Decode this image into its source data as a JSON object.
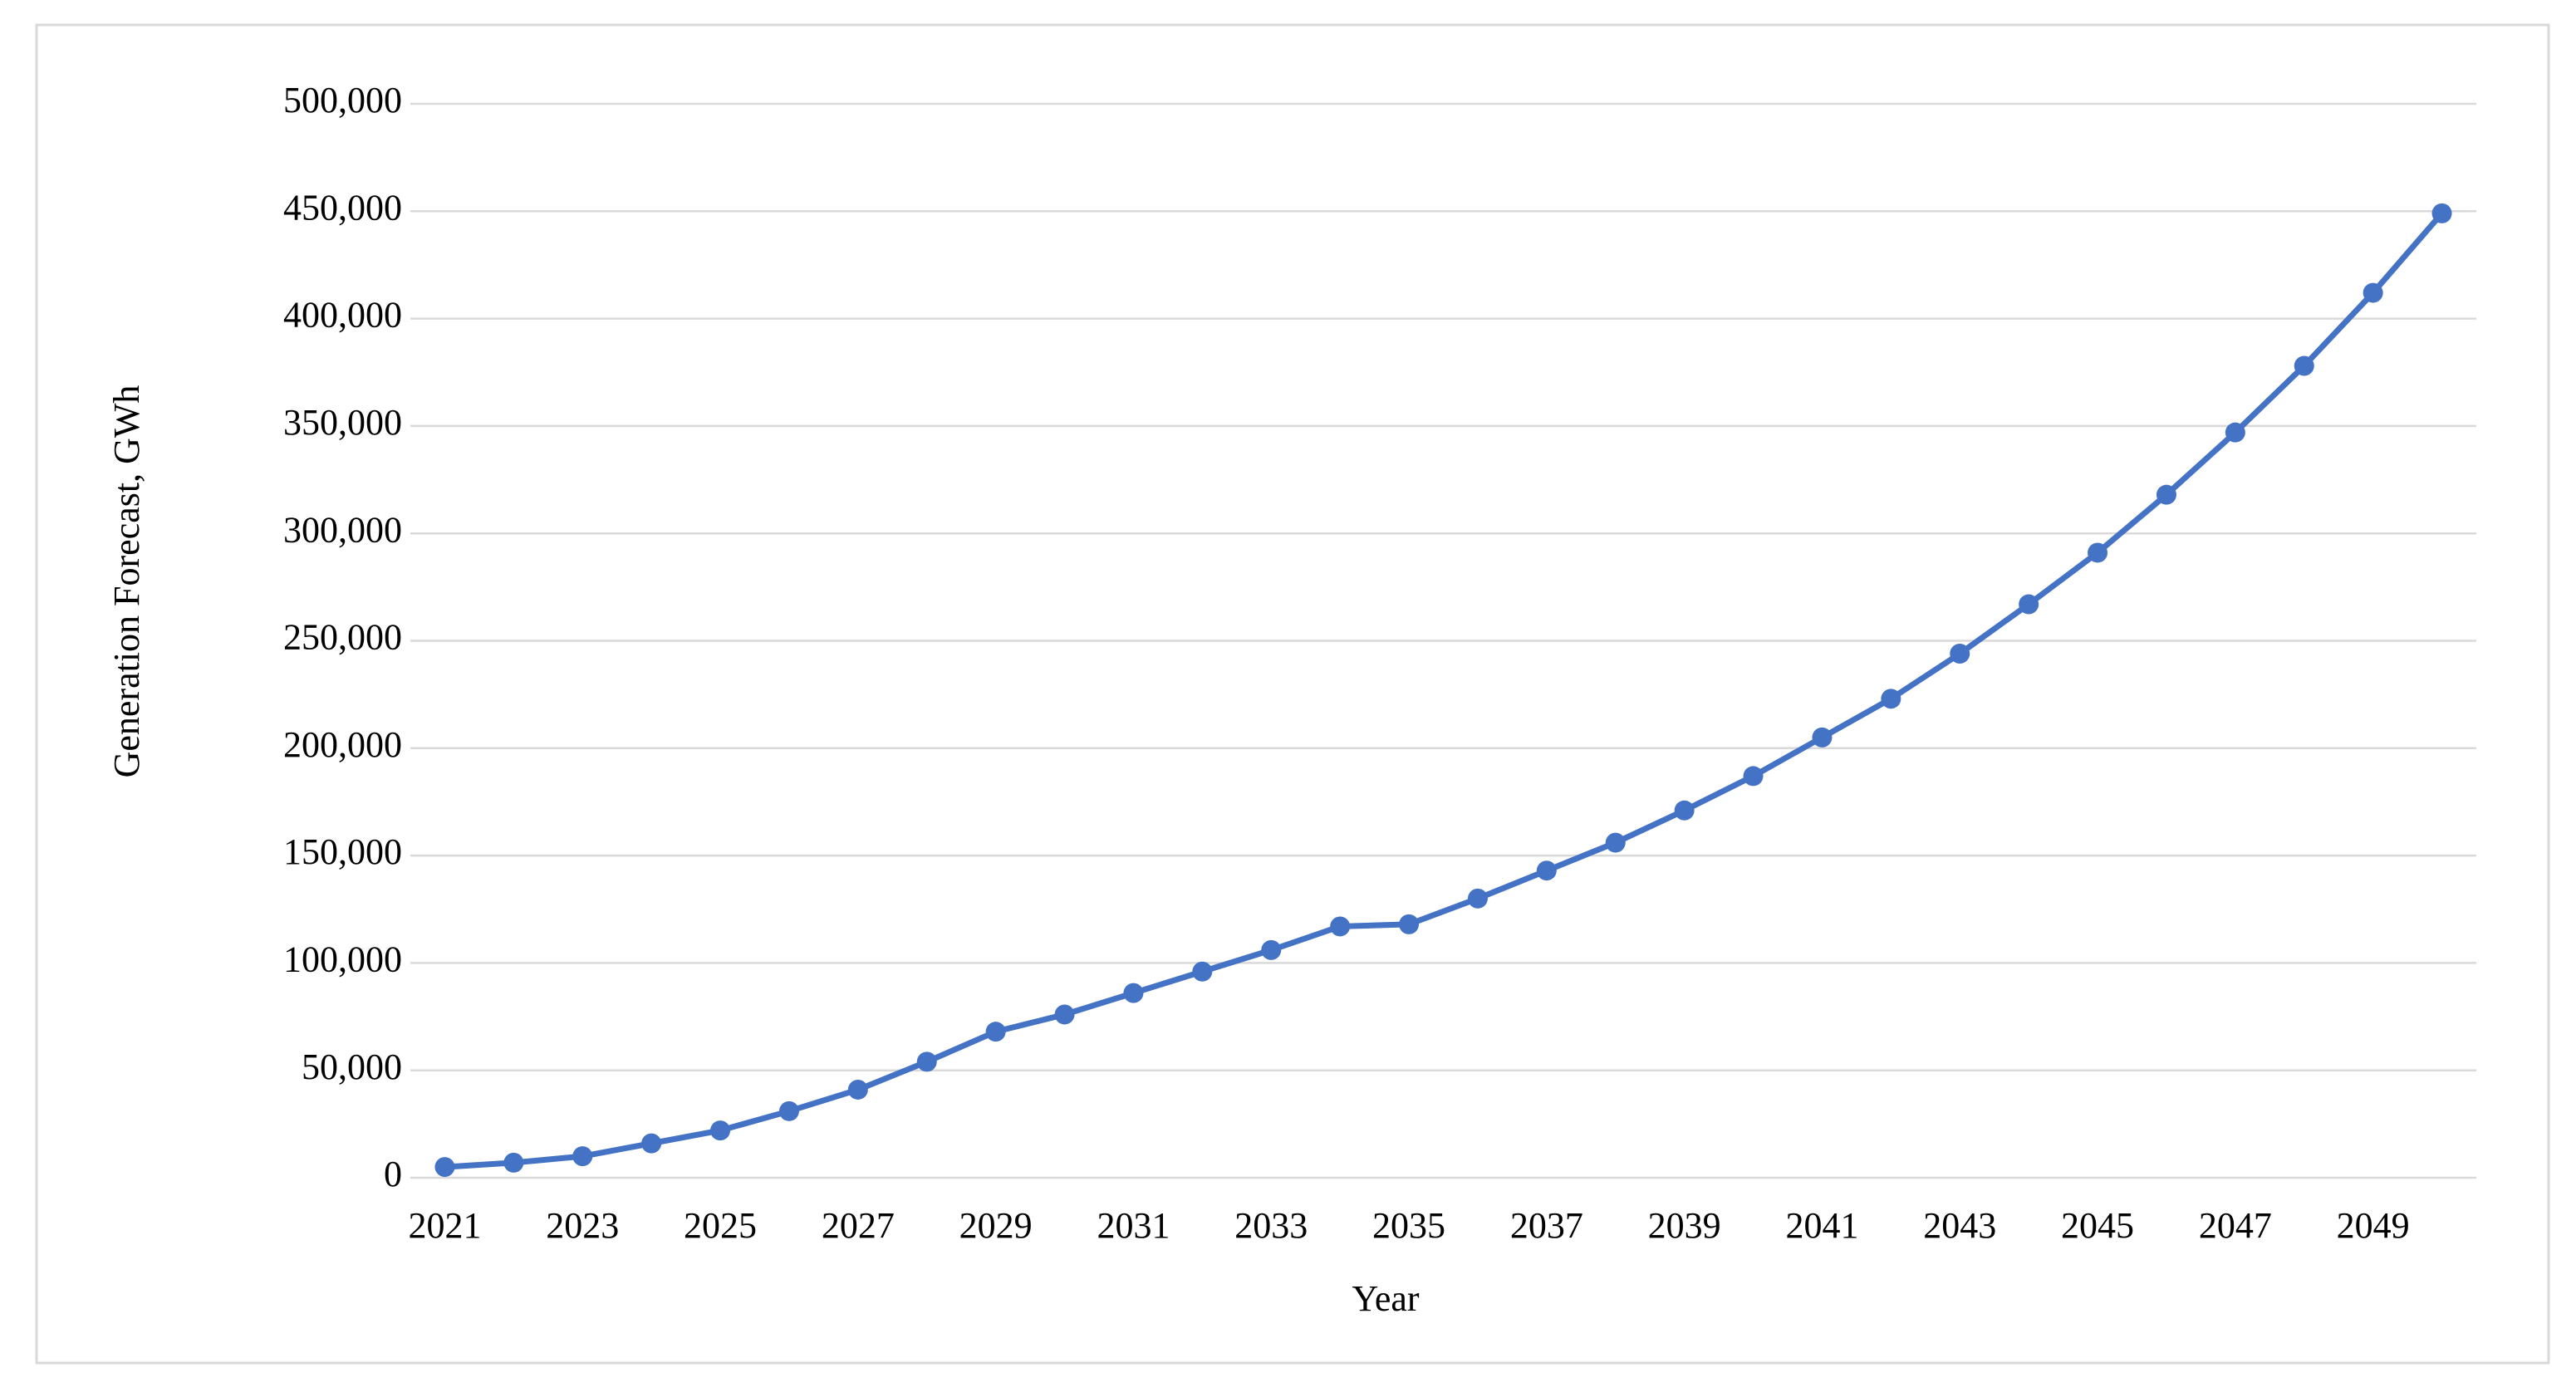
{
  "chart_data": {
    "type": "line",
    "x_label": "Year",
    "y_label": "Generation Forecast, GWh",
    "categories": [
      "2021",
      null,
      "2023",
      null,
      "2025",
      null,
      "2027",
      null,
      "2029",
      null,
      "2031",
      null,
      "2033",
      null,
      "2035",
      null,
      "2037",
      null,
      "2039",
      null,
      "2041",
      null,
      "2043",
      null,
      "2045",
      null,
      "2047",
      null,
      "2049",
      null
    ],
    "values": [
      5000,
      7000,
      10000,
      16000,
      22000,
      31000,
      41000,
      54000,
      68000,
      76000,
      86000,
      96000,
      106000,
      117000,
      118000,
      130000,
      143000,
      156000,
      171000,
      187000,
      205000,
      223000,
      244000,
      267000,
      291000,
      318000,
      347000,
      378000,
      412000,
      449000
    ],
    "color": "#4472c4",
    "ylim": [
      0,
      500000
    ],
    "yticks": [
      0,
      {
        "value": 50000,
        "label": "50,000"
      },
      {
        "value": 100000,
        "label": "100,000"
      },
      {
        "value": 150000,
        "label": "150,000"
      },
      {
        "value": 200000,
        "label": "200,000"
      },
      {
        "value": 250000,
        "label": "250,000"
      },
      {
        "value": 300000,
        "label": "300,000"
      },
      {
        "value": 350000,
        "label": "350,000"
      },
      {
        "value": 400000,
        "label": "400,000"
      },
      {
        "value": 450000,
        "label": "450,000"
      },
      {
        "value": 500000,
        "label": "500,000"
      }
    ],
    "grid": true
  }
}
